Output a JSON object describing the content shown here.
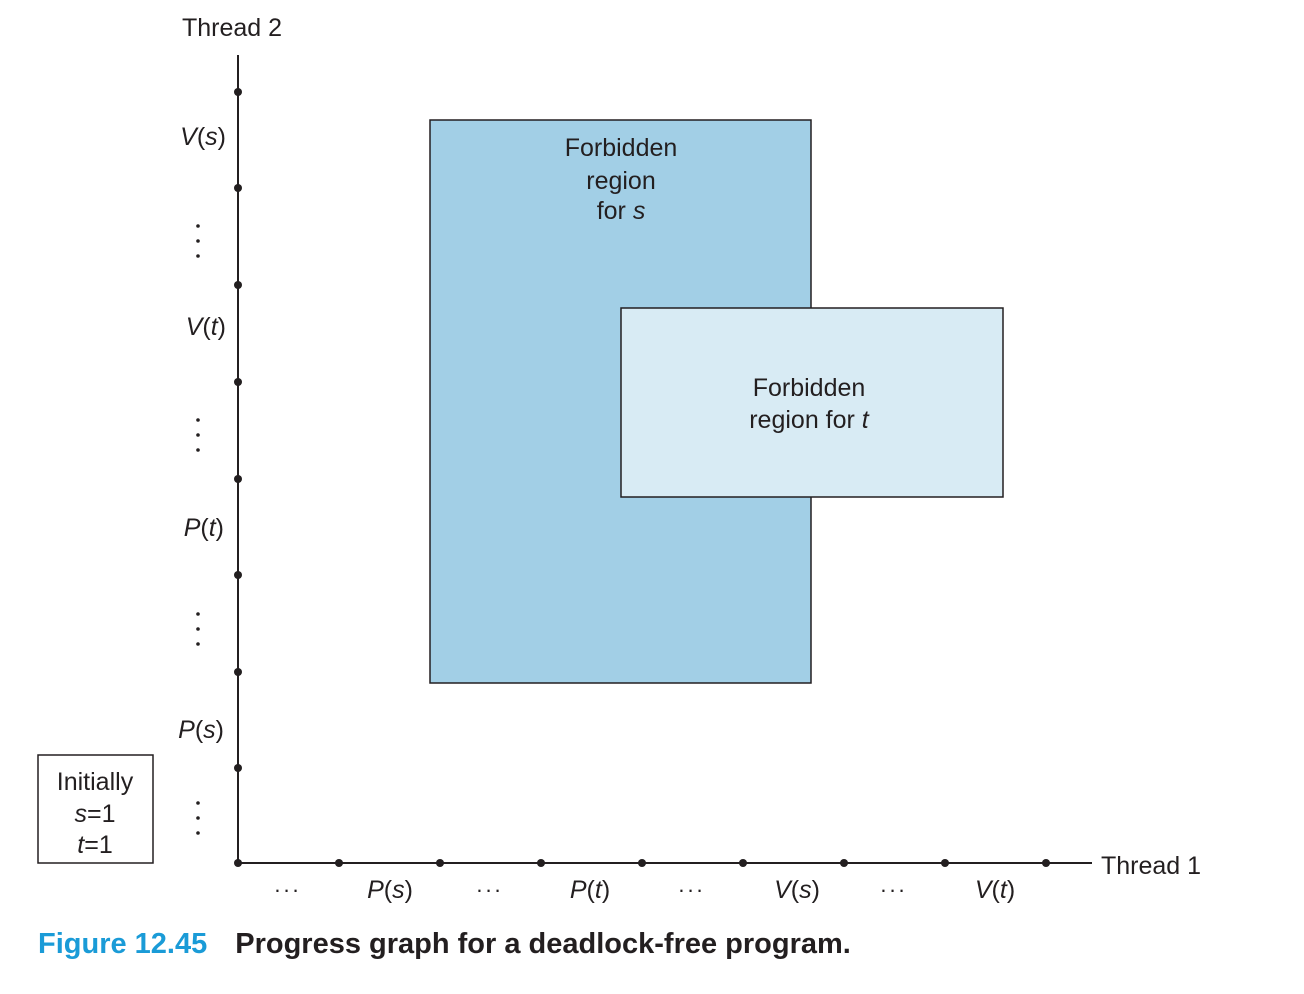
{
  "diagram": {
    "y_axis_title": "Thread 2",
    "x_axis_title": "Thread 1",
    "y_labels": [
      {
        "name": "V",
        "arg": "s"
      },
      {
        "name": "V",
        "arg": "t"
      },
      {
        "name": "P",
        "arg": "t"
      },
      {
        "name": "P",
        "arg": "s"
      }
    ],
    "x_labels": [
      {
        "name": "P",
        "arg": "s"
      },
      {
        "name": "P",
        "arg": "t"
      },
      {
        "name": "V",
        "arg": "s"
      },
      {
        "name": "V",
        "arg": "t"
      }
    ],
    "ellipsis": "...",
    "region_s": {
      "line1": "Forbidden",
      "line2": "region",
      "line3_prefix": "for ",
      "line3_var": "s",
      "color": "#a2cfe6"
    },
    "region_t": {
      "line1": "Forbidden",
      "line2_prefix": "region for ",
      "line2_var": "t",
      "color": "#d8ebf4"
    },
    "initial": {
      "title": "Initially",
      "s_var": "s",
      "s_eq": "=1",
      "t_var": "t",
      "t_eq": "=1"
    }
  },
  "caption": {
    "number": "Figure 12.45",
    "title": "Progress graph for a deadlock-free program."
  }
}
